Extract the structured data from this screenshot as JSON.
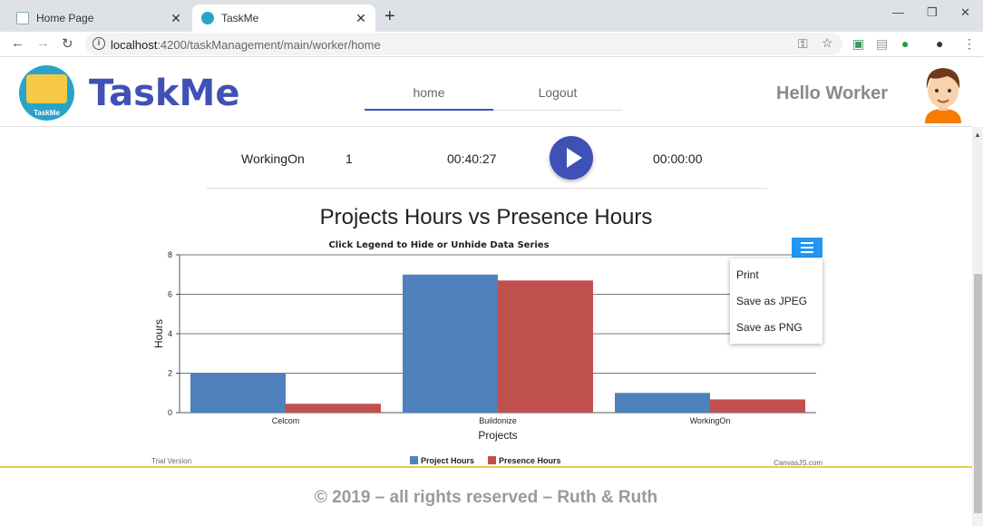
{
  "browser": {
    "tabs": [
      {
        "title": "Home Page",
        "active": false
      },
      {
        "title": "TaskMe",
        "active": true
      }
    ],
    "url_host": "localhost",
    "url_rest": ":4200/taskManagement/main/worker/home"
  },
  "header": {
    "brand": "TaskMe",
    "logo_label": "TaskMe",
    "nav": [
      {
        "label": "home",
        "active": true
      },
      {
        "label": "Logout",
        "active": false
      }
    ],
    "greeting": "Hello Worker"
  },
  "task": {
    "name": "WorkingOn",
    "count": "1",
    "elapsed": "00:40:27",
    "timer": "00:00:00"
  },
  "chart": {
    "title": "Projects Hours vs Presence Hours",
    "menu_items": [
      "Print",
      "Save as JPEG",
      "Save as PNG"
    ],
    "trial_label": "Trial Version",
    "credit": "CanvasJS.com"
  },
  "chart_data": {
    "type": "bar",
    "title": "Click Legend to Hide or Unhide Data Series",
    "xlabel": "Projects",
    "ylabel": "Hours",
    "categories": [
      "Celcom",
      "Buildonize",
      "WorkingOn"
    ],
    "series": [
      {
        "name": "Project Hours",
        "values": [
          2.0,
          7.0,
          1.0
        ],
        "color": "#4f81bc"
      },
      {
        "name": "Presence Hours",
        "values": [
          0.45,
          6.7,
          0.67
        ],
        "color": "#c0504e"
      }
    ],
    "ylim": [
      0,
      8
    ],
    "yticks": [
      0,
      2,
      4,
      6,
      8
    ],
    "grid": true,
    "legend": "bottom"
  },
  "footer": {
    "text": "© 2019 – all rights reserved – Ruth & Ruth"
  },
  "colors": {
    "brand": "#3f51b5",
    "menu_button": "#2196f3",
    "footer_line": "#f2c94c"
  }
}
